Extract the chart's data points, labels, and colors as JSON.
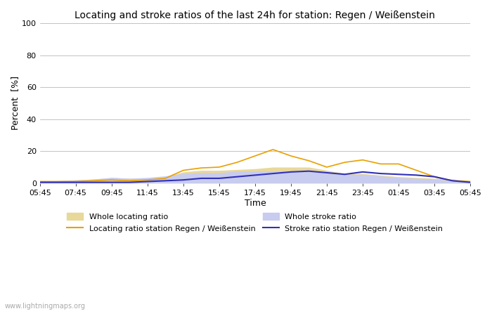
{
  "title": "Locating and stroke ratios of the last 24h for station: Regen / Weißenstein",
  "xlabel": "Time",
  "ylabel": "Percent  [%]",
  "watermark": "www.lightningmaps.org",
  "ylim": [
    0,
    100
  ],
  "x_ticks": [
    "05:45",
    "07:45",
    "09:45",
    "11:45",
    "13:45",
    "15:45",
    "17:45",
    "19:45",
    "21:45",
    "23:45",
    "01:45",
    "03:45",
    "05:45"
  ],
  "num_points": 25,
  "whole_locating_fill_color": "#e8d89a",
  "whole_stroke_fill_color": "#c8ccee",
  "locating_line_color": "#e8a000",
  "stroke_line_color": "#3030b8",
  "locating_line_label": "Locating ratio station Regen / Weißenstein",
  "stroke_line_label": "Stroke ratio station Regen / Weißenstein",
  "whole_locating_label": "Whole locating ratio",
  "whole_stroke_label": "Whole stroke ratio",
  "background_color": "#ffffff",
  "grid_color": "#aaaaaa",
  "title_fontsize": 10,
  "axis_fontsize": 9,
  "tick_fontsize": 8,
  "whole_locating_ratio": [
    1.5,
    1.5,
    2.0,
    2.5,
    3.5,
    3.0,
    3.0,
    4.0,
    7.0,
    8.0,
    8.0,
    8.5,
    9.0,
    10.0,
    10.0,
    10.0,
    8.0,
    6.0,
    6.0,
    5.0,
    4.0,
    3.5,
    3.0,
    2.5,
    1.5
  ],
  "whole_stroke_ratio": [
    1.0,
    1.5,
    2.0,
    2.5,
    3.5,
    3.0,
    3.5,
    4.5,
    6.0,
    6.5,
    6.5,
    7.5,
    7.5,
    7.5,
    7.5,
    7.5,
    6.0,
    5.5,
    5.5,
    4.5,
    3.5,
    3.0,
    2.5,
    1.5,
    1.0
  ],
  "locating_ratio": [
    1.0,
    1.0,
    1.0,
    1.5,
    2.0,
    1.5,
    2.0,
    3.0,
    8.0,
    9.5,
    10.0,
    13.0,
    17.0,
    21.0,
    17.0,
    14.0,
    10.0,
    13.0,
    14.5,
    12.0,
    12.0,
    8.0,
    4.0,
    1.5,
    1.0
  ],
  "stroke_ratio": [
    0.5,
    0.5,
    0.5,
    0.5,
    0.5,
    0.5,
    1.0,
    1.5,
    2.0,
    3.0,
    3.0,
    4.0,
    5.0,
    6.0,
    7.0,
    7.5,
    6.5,
    5.5,
    7.0,
    6.0,
    5.5,
    5.0,
    4.0,
    1.5,
    0.5
  ]
}
